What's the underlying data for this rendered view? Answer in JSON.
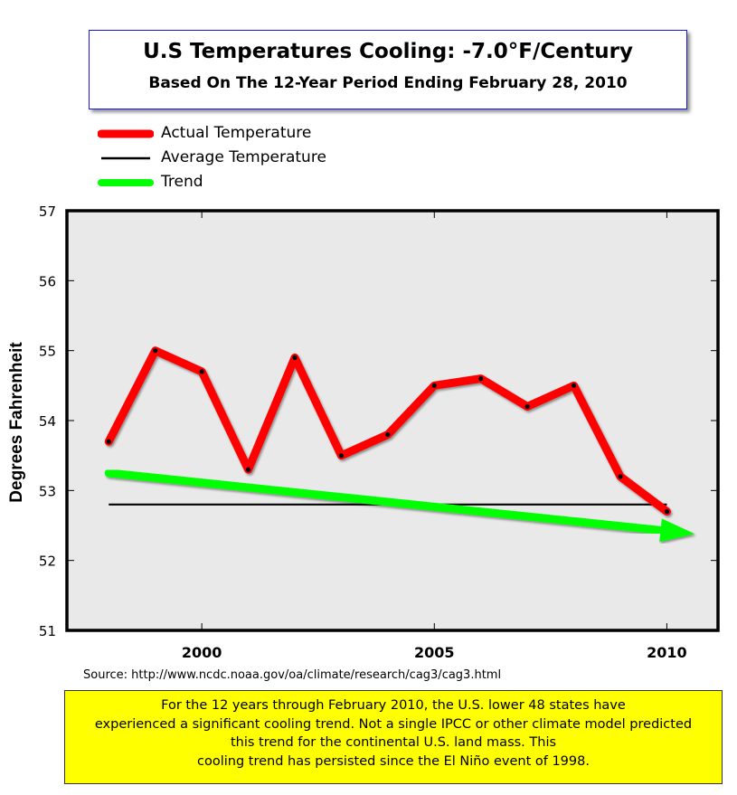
{
  "title": "U.S Temperatures Cooling: -7.0°F/Century",
  "subtitle": "Based On The 12-Year Period Ending February 28, 2010",
  "legend": {
    "items": [
      {
        "label": "Actual Temperature",
        "color": "#ff0000"
      },
      {
        "label": "Average Temperature",
        "color": "#000000"
      },
      {
        "label": "Trend",
        "color": "#00ff00"
      }
    ]
  },
  "source": "Source:  http://www.ncdc.noaa.gov/oa/climate/research/cag3/cag3.html",
  "note": {
    "lines": [
      "For the 12 years through February 2010, the U.S. lower 48 states have",
      "experienced a significant cooling trend. Not a single IPCC or other climate model predicted",
      "this trend for the continental U.S. land mass. This",
      "cooling trend has persisted since the El Niño event of 1998."
    ]
  },
  "chart_data": {
    "type": "line",
    "ylabel": "Degrees Fahrenheit",
    "xlabel": "",
    "ylim": [
      51,
      57
    ],
    "xlim": [
      1997.1,
      2011.1
    ],
    "yticks": [
      51,
      52,
      53,
      54,
      55,
      56,
      57
    ],
    "xticks": [
      2000,
      2005,
      2010
    ],
    "grid": false,
    "legend_position": "top-left",
    "background": "#e9e9e9",
    "series": [
      {
        "name": "Actual Temperature",
        "color": "#ff0000",
        "x": [
          1998,
          1999,
          2000,
          2001,
          2002,
          2003,
          2004,
          2005,
          2006,
          2007,
          2008,
          2009,
          2010
        ],
        "y": [
          53.7,
          55.0,
          54.7,
          53.3,
          54.9,
          53.5,
          53.8,
          54.5,
          54.6,
          54.2,
          54.5,
          53.2,
          52.7
        ]
      },
      {
        "name": "Average Temperature",
        "color": "#000000",
        "x": [
          1998,
          2010
        ],
        "y": [
          52.8,
          52.8
        ]
      },
      {
        "name": "Trend",
        "color": "#00ff00",
        "x": [
          1998,
          2010.6
        ],
        "y": [
          53.25,
          52.38
        ]
      }
    ]
  }
}
